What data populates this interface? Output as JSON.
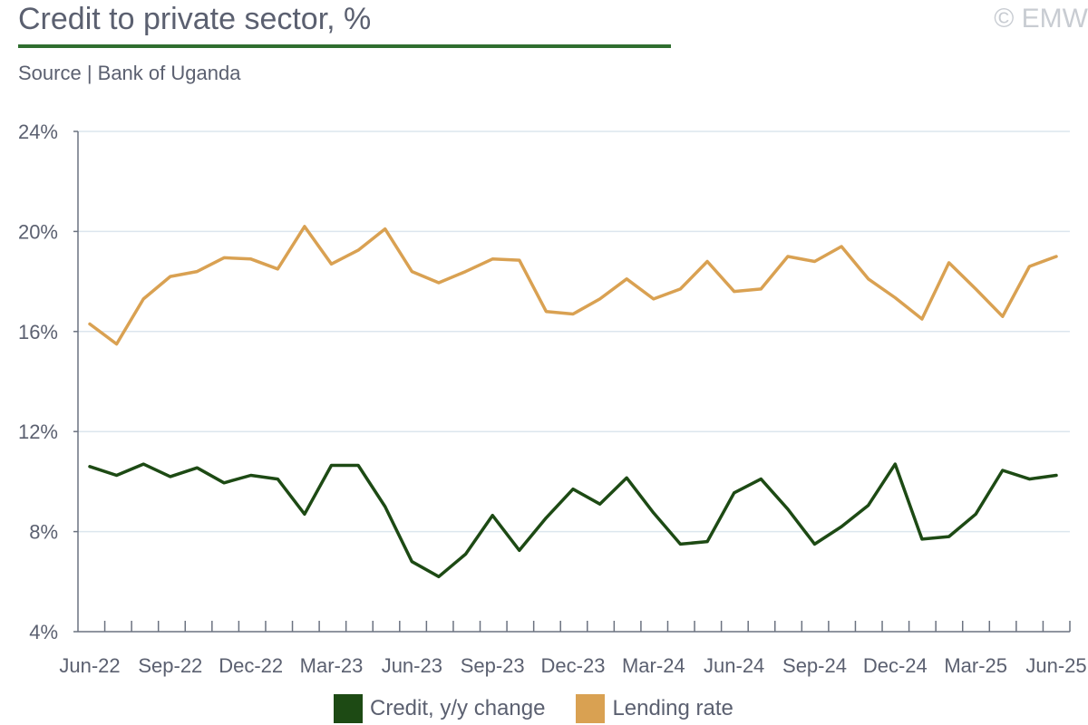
{
  "header": {
    "title": "Credit to private sector, %",
    "source": "Source | Bank of Uganda",
    "copyright": "© EMW"
  },
  "colors": {
    "credit": "#1d4a14",
    "lending": "#d9a152",
    "grid": "#dce6ee",
    "axis": "#6b7280",
    "title_rule": "#2f6e2f"
  },
  "legend": {
    "credit_label": "Credit, y/y change",
    "lending_label": "Lending rate"
  },
  "chart_data": {
    "type": "line",
    "title": "Credit to private sector, %",
    "x": [
      "Jun-22",
      "Jul-22",
      "Aug-22",
      "Sep-22",
      "Oct-22",
      "Nov-22",
      "Dec-22",
      "Jan-23",
      "Feb-23",
      "Mar-23",
      "Apr-23",
      "May-23",
      "Jun-23",
      "Jul-23",
      "Aug-23",
      "Sep-23",
      "Oct-23",
      "Nov-23",
      "Dec-23",
      "Jan-24",
      "Feb-24",
      "Mar-24",
      "Apr-24",
      "May-24",
      "Jun-24",
      "Jul-24",
      "Aug-24",
      "Sep-24",
      "Oct-24",
      "Nov-24",
      "Dec-24",
      "Jan-25",
      "Feb-25",
      "Mar-25",
      "Apr-25",
      "May-25",
      "Jun-25"
    ],
    "x_tick_labels": [
      "Jun-22",
      "Sep-22",
      "Dec-22",
      "Mar-23",
      "Jun-23",
      "Sep-23",
      "Dec-23",
      "Mar-24",
      "Jun-24",
      "Sep-24",
      "Dec-24",
      "Mar-25",
      "Jun-25"
    ],
    "y_ticks": [
      "4%",
      "8%",
      "12%",
      "16%",
      "20%",
      "24%"
    ],
    "ylim": [
      4,
      24
    ],
    "grid": true,
    "legend_position": "bottom",
    "series": [
      {
        "name": "Credit, y/y change",
        "color": "#1d4a14",
        "values": [
          10.6,
          10.25,
          10.7,
          10.2,
          10.55,
          9.95,
          10.25,
          10.1,
          8.7,
          10.65,
          10.65,
          9.0,
          6.8,
          6.2,
          7.1,
          8.65,
          7.25,
          8.55,
          9.7,
          9.1,
          10.15,
          8.75,
          7.5,
          7.6,
          9.55,
          10.1,
          8.9,
          7.5,
          8.2,
          9.05,
          10.7,
          7.7,
          7.8,
          8.7,
          10.45,
          10.1,
          10.25
        ]
      },
      {
        "name": "Lending rate",
        "color": "#d9a152",
        "values": [
          16.3,
          15.5,
          17.3,
          18.2,
          18.4,
          18.95,
          18.9,
          18.5,
          20.2,
          18.7,
          19.25,
          20.1,
          18.4,
          17.95,
          18.4,
          18.9,
          18.85,
          16.8,
          16.7,
          17.3,
          18.1,
          17.3,
          17.7,
          18.8,
          17.6,
          17.7,
          19.0,
          18.8,
          19.4,
          18.1,
          17.35,
          16.5,
          18.75,
          17.7,
          16.6,
          18.6,
          19.0
        ]
      }
    ]
  }
}
